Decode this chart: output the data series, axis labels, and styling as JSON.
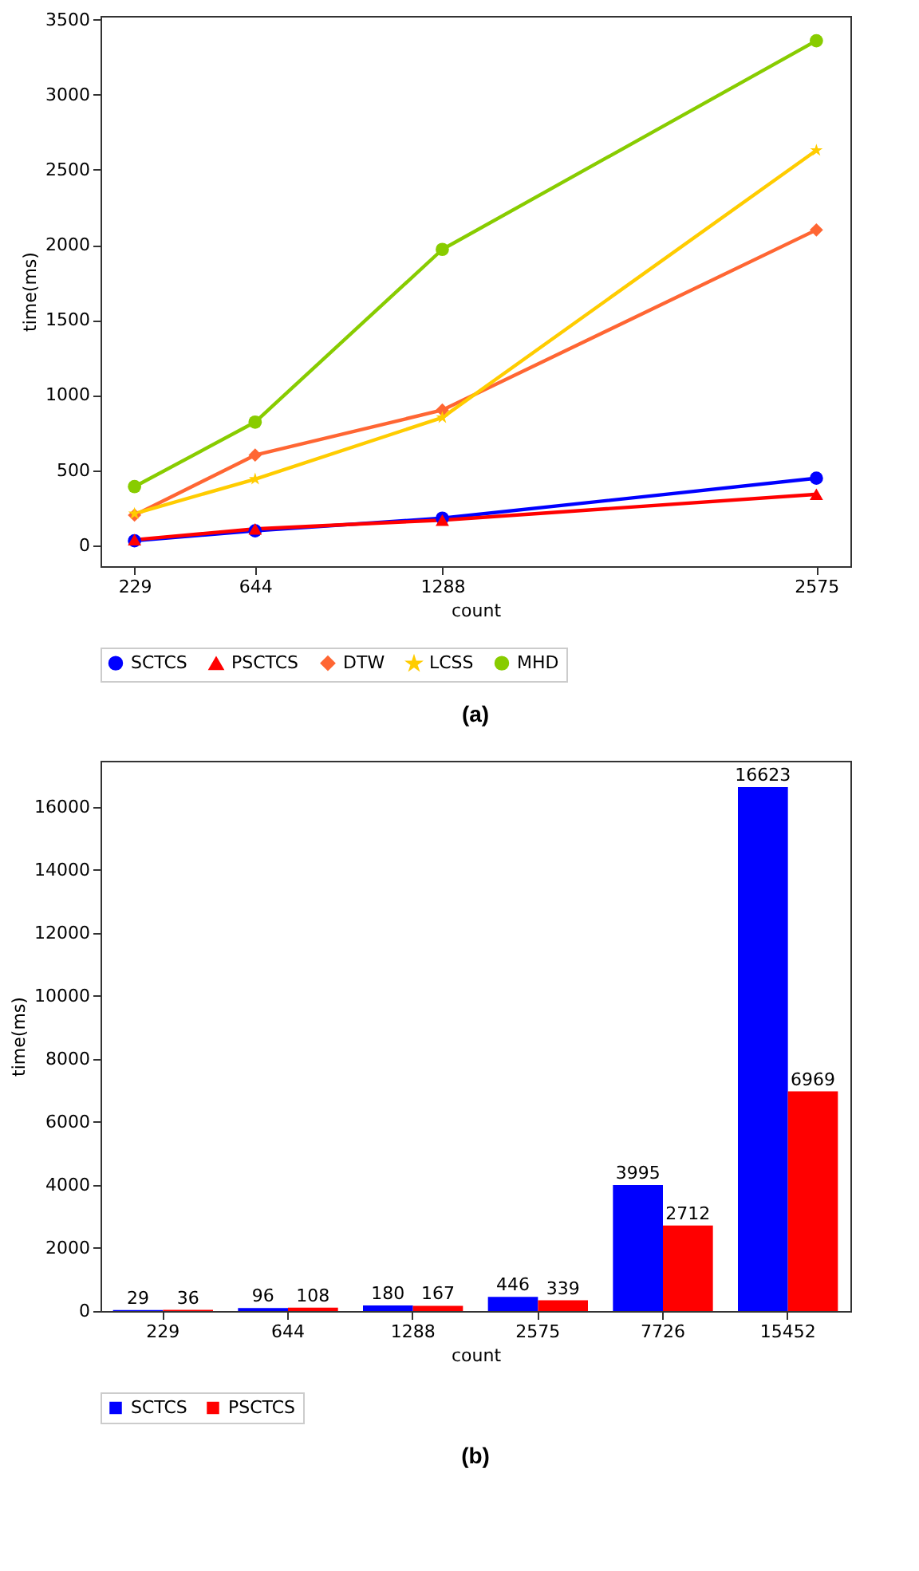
{
  "chart_data": [
    {
      "type": "line",
      "xlabel": "count",
      "ylabel": "time(ms)",
      "x": [
        229,
        644,
        1288,
        2575
      ],
      "xlim": [
        112,
        2692
      ],
      "xticks": [
        229,
        644,
        1288,
        2575
      ],
      "ylim": [
        -140,
        3525
      ],
      "yticks": [
        0,
        500,
        1000,
        1500,
        2000,
        2500,
        3000,
        3500
      ],
      "grid": false,
      "legend": "bottom",
      "annotations": [
        "(a)"
      ],
      "series": [
        {
          "name": "SCTCS",
          "color": "#0000ff",
          "marker": "circle",
          "values": [
            29,
            96,
            180,
            446
          ]
        },
        {
          "name": "PSCTCS",
          "color": "#ff0000",
          "marker": "triangle",
          "values": [
            36,
            108,
            167,
            339
          ]
        },
        {
          "name": "DTW",
          "color": "#ff6633",
          "marker": "diamond",
          "values": [
            200,
            600,
            900,
            2100
          ]
        },
        {
          "name": "LCSS",
          "color": "#ffcc00",
          "marker": "star",
          "values": [
            210,
            440,
            850,
            2630
          ]
        },
        {
          "name": "MHD",
          "color": "#88cc00",
          "marker": "circle",
          "values": [
            390,
            820,
            1970,
            3360
          ]
        }
      ]
    },
    {
      "type": "bar",
      "xlabel": "count",
      "ylabel": "time(ms)",
      "categories": [
        "229",
        "644",
        "1288",
        "2575",
        "7726",
        "15452"
      ],
      "ylim": [
        0,
        17455
      ],
      "yticks": [
        0,
        2000,
        4000,
        6000,
        8000,
        10000,
        12000,
        14000,
        16000
      ],
      "grid": false,
      "legend": "bottom",
      "data_labels": true,
      "annotations": [
        "(b)"
      ],
      "series": [
        {
          "name": "SCTCS",
          "color": "#0000ff",
          "values": [
            29,
            96,
            180,
            446,
            3995,
            16623
          ]
        },
        {
          "name": "PSCTCS",
          "color": "#ff0000",
          "values": [
            36,
            108,
            167,
            339,
            2712,
            6969
          ]
        }
      ]
    }
  ]
}
